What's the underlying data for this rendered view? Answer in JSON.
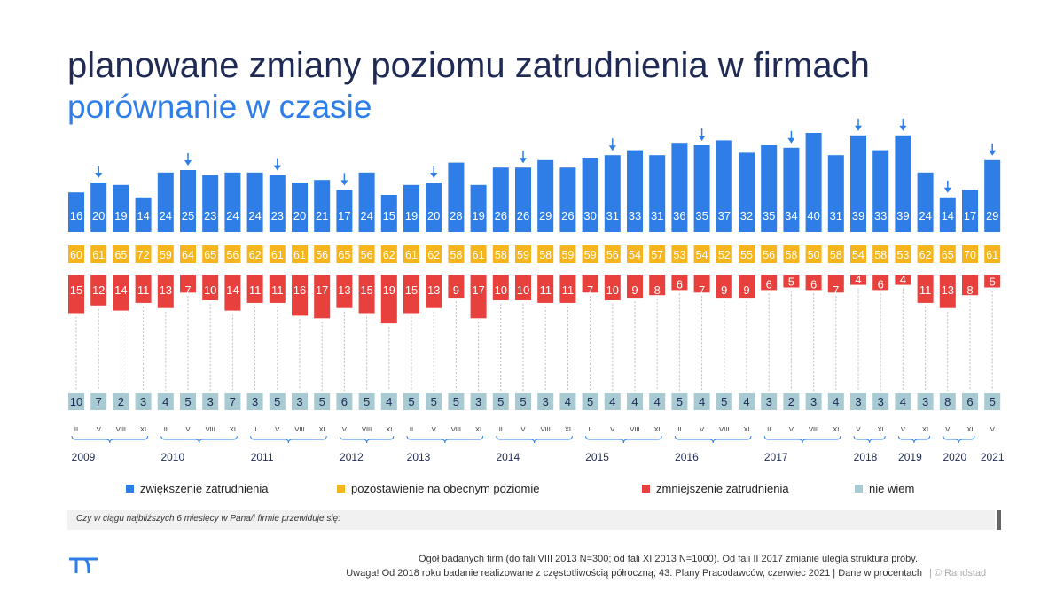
{
  "title": "planowane zmiany poziomu zatrudnienia w firmach",
  "subtitle": "porównanie w czasie",
  "question": "Czy w ciągu najbliższych 6 miesięcy w Pana/i firmie przewiduje się:",
  "footnote_line1": "Ogół badanych firm (do fali VIII 2013 N=300; od fali XI 2013 N=1000).  Od fali II 2017 zmianie  uległa struktura próby.",
  "footnote_line2": "Uwaga!  Od 2018 roku badanie realizowane  z  częstotliwością  półroczną;  43.  Plany  Pracodawców,  czerwiec  2021  |  Dane  w  procentach",
  "copyright": "|  © Randstad",
  "colors": {
    "increase": "#2f7ee8",
    "same": "#f7b51d",
    "decrease": "#e8403c",
    "dontknow": "#a7cad3",
    "title": "#1f2a55",
    "subtitle": "#2f7ee8"
  },
  "chart_data": {
    "type": "bar",
    "categories": [
      "II",
      "V",
      "VIII",
      "XI",
      "II",
      "V",
      "VIII",
      "XI",
      "II",
      "V",
      "VIII",
      "XI",
      "V",
      "VIII",
      "XI",
      "II",
      "V",
      "VIII",
      "XI",
      "II",
      "V",
      "VIII",
      "XI",
      "II",
      "V",
      "VIII",
      "XI",
      "II",
      "V",
      "VIII",
      "XI",
      "II",
      "V",
      "VIII",
      "XI",
      "V",
      "XI",
      "V",
      "XI",
      "V",
      "XI",
      "V"
    ],
    "years": [
      {
        "label": "2009",
        "start": 0,
        "end": 3
      },
      {
        "label": "2010",
        "start": 4,
        "end": 7
      },
      {
        "label": "2011",
        "start": 8,
        "end": 11
      },
      {
        "label": "2012",
        "start": 12,
        "end": 14
      },
      {
        "label": "2013",
        "start": 15,
        "end": 18
      },
      {
        "label": "2014",
        "start": 19,
        "end": 22
      },
      {
        "label": "2015",
        "start": 23,
        "end": 26
      },
      {
        "label": "2016",
        "start": 27,
        "end": 30
      },
      {
        "label": "2017",
        "start": 31,
        "end": 34
      },
      {
        "label": "2018",
        "start": 35,
        "end": 36
      },
      {
        "label": "2019",
        "start": 37,
        "end": 38
      },
      {
        "label": "2020",
        "start": 39,
        "end": 40
      },
      {
        "label": "2021",
        "start": 41,
        "end": 41
      }
    ],
    "highlighted_waves": [
      1,
      5,
      9,
      12,
      16,
      20,
      24,
      28,
      32,
      35,
      37,
      39,
      41
    ],
    "series": [
      {
        "name": "zwiększenie zatrudnienia",
        "color": "#2f7ee8",
        "values": [
          16,
          20,
          19,
          14,
          24,
          25,
          23,
          24,
          24,
          23,
          20,
          21,
          17,
          24,
          15,
          19,
          20,
          28,
          19,
          26,
          26,
          29,
          26,
          30,
          31,
          33,
          31,
          36,
          35,
          37,
          32,
          35,
          34,
          40,
          31,
          39,
          33,
          39,
          24,
          14,
          17,
          29
        ]
      },
      {
        "name": "pozostawienie na obecnym poziomie",
        "color": "#f7b51d",
        "values": [
          60,
          61,
          65,
          72,
          59,
          64,
          65,
          56,
          62,
          61,
          61,
          56,
          65,
          56,
          62,
          61,
          62,
          58,
          61,
          58,
          59,
          58,
          59,
          59,
          56,
          54,
          57,
          53,
          54,
          52,
          55,
          56,
          58,
          50,
          58,
          54,
          58,
          53,
          62,
          65,
          70,
          61
        ]
      },
      {
        "name": "zmniejszenie zatrudnienia",
        "color": "#e8403c",
        "values": [
          15,
          12,
          14,
          11,
          13,
          7,
          10,
          14,
          11,
          11,
          16,
          17,
          13,
          15,
          19,
          15,
          13,
          9,
          17,
          10,
          10,
          11,
          11,
          7,
          10,
          9,
          8,
          6,
          7,
          9,
          9,
          6,
          5,
          6,
          7,
          4,
          6,
          4,
          11,
          13,
          8,
          5
        ]
      },
      {
        "name": "nie wiem",
        "color": "#a7cad3",
        "values": [
          10,
          7,
          2,
          3,
          4,
          5,
          3,
          7,
          3,
          5,
          3,
          5,
          6,
          5,
          4,
          5,
          5,
          5,
          3,
          5,
          5,
          3,
          4,
          5,
          4,
          4,
          4,
          5,
          4,
          5,
          4,
          3,
          2,
          3,
          4,
          3,
          3,
          4,
          3,
          8,
          6,
          5
        ]
      }
    ]
  }
}
